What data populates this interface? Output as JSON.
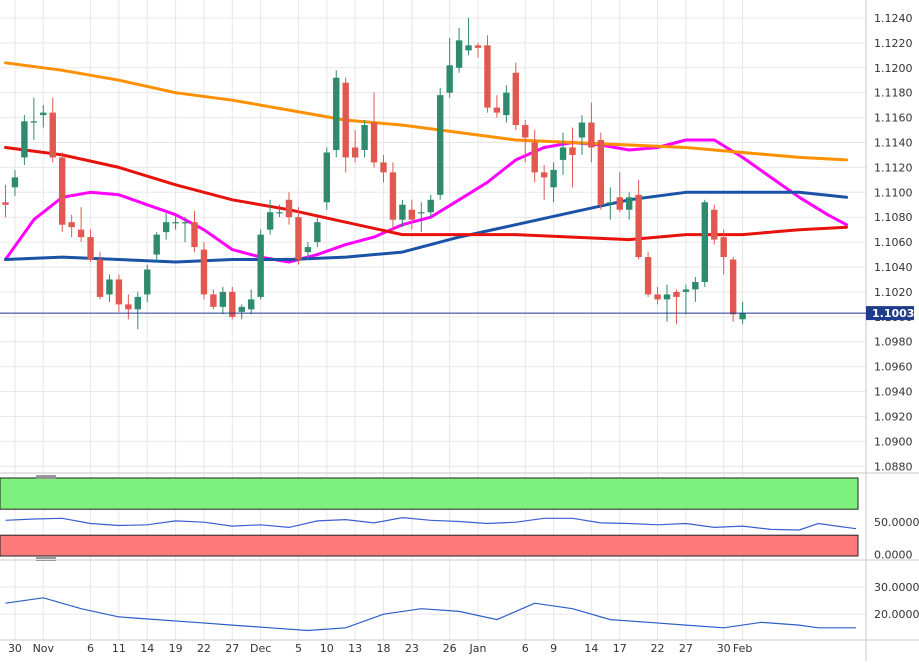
{
  "price_tag": "1.1003",
  "chart_data": {
    "type": "candlestick",
    "grid": true,
    "x_tick_labels": [
      "30",
      "Nov",
      "6",
      "11",
      "14",
      "19",
      "22",
      "27",
      "Dec",
      "5",
      "10",
      "13",
      "18",
      "23",
      "26",
      "Jan",
      "6",
      "9",
      "14",
      "17",
      "22",
      "27",
      "30",
      "Feb"
    ],
    "main_panel": {
      "y_tick_labels": [
        "1.1240",
        "1.1220",
        "1.1200",
        "1.1180",
        "1.1160",
        "1.1140",
        "1.1120",
        "1.1100",
        "1.1080",
        "1.1060",
        "1.1040",
        "1.1020",
        "1.1000",
        "1.0980",
        "1.0960",
        "1.0940",
        "1.0920",
        "1.0900",
        "1.0880"
      ],
      "ylim": [
        1.0877,
        1.1248
      ],
      "last_price": 1.1003,
      "candles": [
        [
          1.1092,
          1.1106,
          1.108,
          1.109
        ],
        [
          1.1104,
          1.1118,
          1.1097,
          1.1112
        ],
        [
          1.1128,
          1.1162,
          1.1122,
          1.1157
        ],
        [
          1.1156,
          1.1176,
          1.1142,
          1.1157
        ],
        [
          1.1162,
          1.117,
          1.1152,
          1.1164
        ],
        [
          1.1164,
          1.1176,
          1.1124,
          1.1128
        ],
        [
          1.1128,
          1.1132,
          1.1068,
          1.1074
        ],
        [
          1.1076,
          1.1082,
          1.1064,
          1.1072
        ],
        [
          1.107,
          1.1088,
          1.106,
          1.1064
        ],
        [
          1.1064,
          1.107,
          1.1044,
          1.1046
        ],
        [
          1.1046,
          1.1052,
          1.1014,
          1.1016
        ],
        [
          1.1018,
          1.1034,
          1.1012,
          1.103
        ],
        [
          1.103,
          1.1034,
          1.1004,
          1.101
        ],
        [
          1.101,
          1.1018,
          1.0998,
          1.1006
        ],
        [
          1.1006,
          1.102,
          1.099,
          1.1016
        ],
        [
          1.1018,
          1.1042,
          1.1012,
          1.1038
        ],
        [
          1.105,
          1.1068,
          1.1045,
          1.1066
        ],
        [
          1.1068,
          1.1083,
          1.1062,
          1.1076
        ],
        [
          1.1076,
          1.1082,
          1.107,
          1.1076
        ],
        [
          1.1076,
          1.108,
          1.106,
          1.1076
        ],
        [
          1.1076,
          1.1085,
          1.1052,
          1.1056
        ],
        [
          1.1054,
          1.106,
          1.1014,
          1.1018
        ],
        [
          1.1018,
          1.1022,
          1.1006,
          1.1008
        ],
        [
          1.1008,
          1.1024,
          1.1002,
          1.102
        ],
        [
          1.102,
          1.1024,
          1.0998,
          1.1
        ],
        [
          1.1004,
          1.101,
          1.0998,
          1.1008
        ],
        [
          1.1006,
          1.1022,
          1.1002,
          1.1014
        ],
        [
          1.1016,
          1.107,
          1.1014,
          1.1066
        ],
        [
          1.107,
          1.1094,
          1.1066,
          1.1084
        ],
        [
          1.1084,
          1.109,
          1.108,
          1.1084
        ],
        [
          1.1094,
          1.11,
          1.1074,
          1.108
        ],
        [
          1.108,
          1.1088,
          1.1042,
          1.1046
        ],
        [
          1.1052,
          1.106,
          1.1046,
          1.1056
        ],
        [
          1.106,
          1.108,
          1.1056,
          1.1076
        ],
        [
          1.1092,
          1.1136,
          1.1086,
          1.1132
        ],
        [
          1.1134,
          1.1198,
          1.1128,
          1.1192
        ],
        [
          1.1188,
          1.1192,
          1.1116,
          1.1128
        ],
        [
          1.1136,
          1.115,
          1.1124,
          1.1128
        ],
        [
          1.1134,
          1.1158,
          1.1128,
          1.1154
        ],
        [
          1.1156,
          1.118,
          1.112,
          1.1124
        ],
        [
          1.1124,
          1.113,
          1.1108,
          1.1116
        ],
        [
          1.1116,
          1.1124,
          1.1068,
          1.1078
        ],
        [
          1.1078,
          1.1094,
          1.1072,
          1.109
        ],
        [
          1.1086,
          1.1094,
          1.107,
          1.1078
        ],
        [
          1.1084,
          1.1092,
          1.1068,
          1.1084
        ],
        [
          1.1084,
          1.1098,
          1.108,
          1.1094
        ],
        [
          1.1098,
          1.1184,
          1.1094,
          1.1178
        ],
        [
          1.118,
          1.1224,
          1.1176,
          1.1202
        ],
        [
          1.12,
          1.1232,
          1.1196,
          1.1222
        ],
        [
          1.1214,
          1.124,
          1.121,
          1.1218
        ],
        [
          1.1218,
          1.122,
          1.1208,
          1.1216
        ],
        [
          1.1218,
          1.1226,
          1.1164,
          1.1168
        ],
        [
          1.1168,
          1.1178,
          1.116,
          1.1164
        ],
        [
          1.1162,
          1.1186,
          1.1156,
          1.118
        ],
        [
          1.1196,
          1.1204,
          1.115,
          1.1154
        ],
        [
          1.1154,
          1.1158,
          1.1124,
          1.1144
        ],
        [
          1.114,
          1.115,
          1.1108,
          1.1116
        ],
        [
          1.1116,
          1.1122,
          1.1094,
          1.1112
        ],
        [
          1.1104,
          1.1124,
          1.1092,
          1.1118
        ],
        [
          1.1126,
          1.1148,
          1.1114,
          1.1136
        ],
        [
          1.1136,
          1.1152,
          1.1104,
          1.113
        ],
        [
          1.1144,
          1.1162,
          1.113,
          1.1156
        ],
        [
          1.1156,
          1.1172,
          1.1124,
          1.1136
        ],
        [
          1.1142,
          1.1148,
          1.1086,
          1.109
        ],
        [
          1.1092,
          1.1104,
          1.1078,
          1.1092
        ],
        [
          1.1096,
          1.1116,
          1.1084,
          1.1086
        ],
        [
          1.1086,
          1.11,
          1.1078,
          1.1096
        ],
        [
          1.1098,
          1.111,
          1.1046,
          1.1048
        ],
        [
          1.1048,
          1.1052,
          1.1016,
          1.1018
        ],
        [
          1.1018,
          1.1024,
          1.101,
          1.1014
        ],
        [
          1.1014,
          1.1026,
          1.0996,
          1.1018
        ],
        [
          1.102,
          1.1022,
          1.0994,
          1.1016
        ],
        [
          1.102,
          1.1026,
          1.1002,
          1.1022
        ],
        [
          1.1022,
          1.1032,
          1.1012,
          1.1028
        ],
        [
          1.1028,
          1.1094,
          1.1024,
          1.1092
        ],
        [
          1.1086,
          1.109,
          1.1058,
          1.1062
        ],
        [
          1.1064,
          1.107,
          1.1034,
          1.1048
        ],
        [
          1.1046,
          1.1048,
          1.0996,
          1.1002
        ],
        [
          1.0998,
          1.1012,
          1.0994,
          1.1003
        ]
      ],
      "moving_averages": [
        {
          "color": "#ff00ff",
          "values": [
            [
              0,
              1.1046
            ],
            [
              3,
              1.1078
            ],
            [
              6,
              1.1096
            ],
            [
              9,
              1.11
            ],
            [
              12,
              1.1098
            ],
            [
              15,
              1.109
            ],
            [
              18,
              1.1082
            ],
            [
              21,
              1.107
            ],
            [
              24,
              1.1054
            ],
            [
              27,
              1.1048
            ],
            [
              30,
              1.1044
            ],
            [
              33,
              1.105
            ],
            [
              36,
              1.1058
            ],
            [
              39,
              1.1064
            ],
            [
              42,
              1.1074
            ],
            [
              45,
              1.108
            ],
            [
              48,
              1.1094
            ],
            [
              51,
              1.1108
            ],
            [
              54,
              1.1126
            ],
            [
              57,
              1.1136
            ],
            [
              60,
              1.114
            ],
            [
              63,
              1.1138
            ],
            [
              66,
              1.1134
            ],
            [
              69,
              1.1136
            ],
            [
              72,
              1.1142
            ],
            [
              75,
              1.1142
            ],
            [
              78,
              1.1128
            ],
            [
              81,
              1.1112
            ],
            [
              84,
              1.1096
            ],
            [
              87,
              1.1082
            ],
            [
              89,
              1.1074
            ]
          ]
        },
        {
          "color": "#1a52a8",
          "values": [
            [
              0,
              1.1046
            ],
            [
              6,
              1.1048
            ],
            [
              12,
              1.1046
            ],
            [
              18,
              1.1044
            ],
            [
              24,
              1.1046
            ],
            [
              30,
              1.1046
            ],
            [
              36,
              1.1048
            ],
            [
              42,
              1.1052
            ],
            [
              48,
              1.1064
            ],
            [
              54,
              1.1074
            ],
            [
              60,
              1.1084
            ],
            [
              66,
              1.1094
            ],
            [
              72,
              1.11
            ],
            [
              78,
              1.11
            ],
            [
              84,
              1.11
            ],
            [
              89,
              1.1096
            ]
          ]
        },
        {
          "color": "#e8120c",
          "values": [
            [
              0,
              1.1136
            ],
            [
              6,
              1.113
            ],
            [
              12,
              1.112
            ],
            [
              18,
              1.1106
            ],
            [
              24,
              1.1094
            ],
            [
              30,
              1.1086
            ],
            [
              36,
              1.1076
            ],
            [
              42,
              1.1066
            ],
            [
              48,
              1.1066
            ],
            [
              54,
              1.1066
            ],
            [
              60,
              1.1064
            ],
            [
              66,
              1.1062
            ],
            [
              72,
              1.1066
            ],
            [
              78,
              1.1066
            ],
            [
              84,
              1.107
            ],
            [
              89,
              1.1072
            ]
          ]
        },
        {
          "color": "#ff9000",
          "values": [
            [
              0,
              1.1204
            ],
            [
              6,
              1.1198
            ],
            [
              12,
              1.119
            ],
            [
              18,
              1.118
            ],
            [
              24,
              1.1174
            ],
            [
              30,
              1.1166
            ],
            [
              36,
              1.1158
            ],
            [
              42,
              1.1154
            ],
            [
              48,
              1.1148
            ],
            [
              54,
              1.1142
            ],
            [
              60,
              1.114
            ],
            [
              66,
              1.1138
            ],
            [
              72,
              1.1136
            ],
            [
              78,
              1.1132
            ],
            [
              84,
              1.1128
            ],
            [
              89,
              1.1126
            ]
          ]
        }
      ]
    },
    "indicator_1": {
      "y_tick_labels": [
        "50.0000",
        "0.0000"
      ],
      "ylim": [
        -2,
        118
      ],
      "bands": [
        {
          "from": 70,
          "to": 118,
          "color": "#7ef07e"
        },
        {
          "from": -2,
          "to": 30,
          "color": "#ff7b7b"
        }
      ],
      "color": "#3b5fd0",
      "values": [
        [
          0,
          53
        ],
        [
          3,
          55
        ],
        [
          6,
          56
        ],
        [
          9,
          48
        ],
        [
          12,
          45
        ],
        [
          15,
          46
        ],
        [
          18,
          52
        ],
        [
          21,
          50
        ],
        [
          24,
          44
        ],
        [
          27,
          46
        ],
        [
          30,
          42
        ],
        [
          33,
          52
        ],
        [
          36,
          54
        ],
        [
          39,
          49
        ],
        [
          42,
          57
        ],
        [
          45,
          53
        ],
        [
          48,
          51
        ],
        [
          51,
          48
        ],
        [
          54,
          50
        ],
        [
          57,
          56
        ],
        [
          60,
          56
        ],
        [
          63,
          49
        ],
        [
          66,
          48
        ],
        [
          69,
          46
        ],
        [
          72,
          48
        ],
        [
          75,
          42
        ],
        [
          78,
          44
        ],
        [
          81,
          39
        ],
        [
          84,
          38
        ],
        [
          86,
          48
        ],
        [
          88,
          44
        ],
        [
          90,
          40
        ]
      ]
    },
    "indicator_2": {
      "y_tick_labels": [
        "30.0000",
        "20.0000"
      ],
      "ylim": [
        12,
        38
      ],
      "color": "#2d5fc6",
      "values": [
        [
          0,
          24
        ],
        [
          4,
          26
        ],
        [
          8,
          22
        ],
        [
          12,
          19
        ],
        [
          16,
          18
        ],
        [
          20,
          17
        ],
        [
          24,
          16
        ],
        [
          28,
          15
        ],
        [
          32,
          14
        ],
        [
          36,
          15
        ],
        [
          40,
          20
        ],
        [
          44,
          22
        ],
        [
          48,
          21
        ],
        [
          52,
          18
        ],
        [
          56,
          24
        ],
        [
          60,
          22
        ],
        [
          64,
          18
        ],
        [
          68,
          17
        ],
        [
          72,
          16
        ],
        [
          76,
          15
        ],
        [
          80,
          17
        ],
        [
          84,
          16
        ],
        [
          86,
          15
        ],
        [
          90,
          15
        ]
      ]
    }
  }
}
